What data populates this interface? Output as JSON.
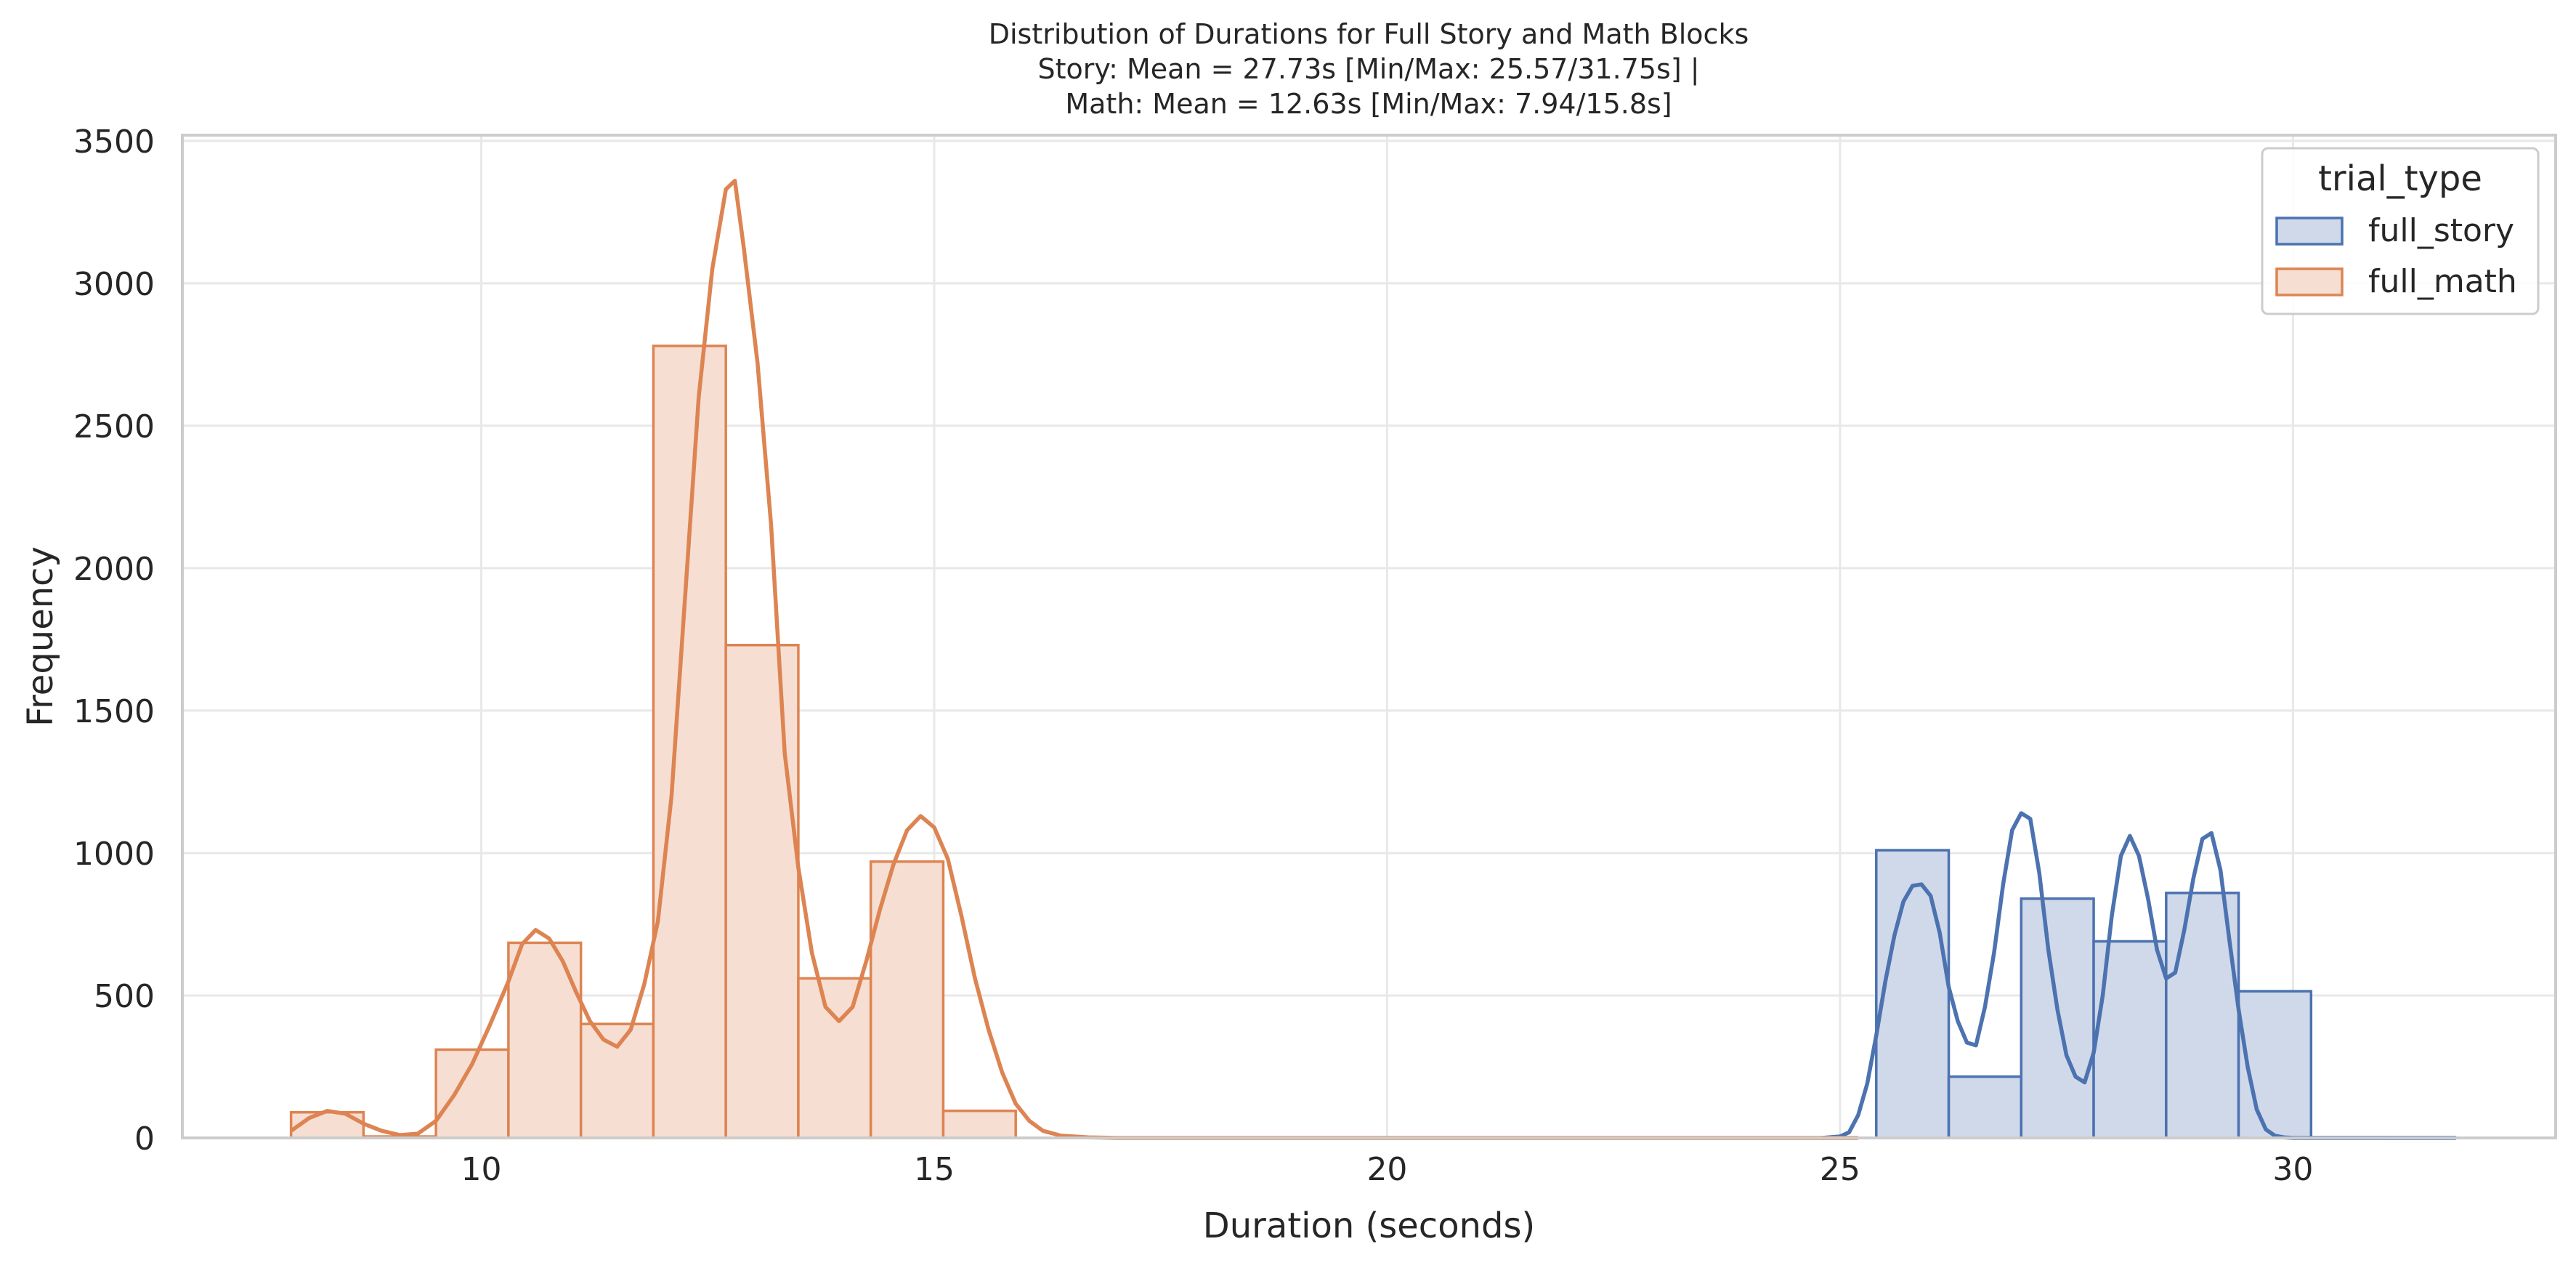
{
  "chart_data": {
    "type": "histogram",
    "title_lines": [
      "Distribution of Durations for Full Story and Math Blocks",
      "Story: Mean = 27.73s [Min/Max: 25.57/31.75s] |",
      "Math: Mean = 12.63s [Min/Max: 7.94/15.8s]"
    ],
    "xlabel": "Duration (seconds)",
    "ylabel": "Frequency",
    "xlim": [
      6.7,
      32.9
    ],
    "ylim": [
      0,
      3520
    ],
    "xticks": [
      10,
      15,
      20,
      25,
      30
    ],
    "yticks": [
      0,
      500,
      1000,
      1500,
      2000,
      2500,
      3000,
      3500
    ],
    "grid": true,
    "legend": {
      "title": "trial_type",
      "placement": "top-right"
    },
    "series": [
      {
        "name": "full_story",
        "color": "#4c72b0",
        "fill": "#d0d9ea",
        "bins": [
          {
            "x0": 25.4,
            "x1": 26.2,
            "count": 1010
          },
          {
            "x0": 26.2,
            "x1": 27.0,
            "count": 215
          },
          {
            "x0": 27.0,
            "x1": 27.8,
            "count": 840
          },
          {
            "x0": 27.8,
            "x1": 28.6,
            "count": 690
          },
          {
            "x0": 28.6,
            "x1": 29.4,
            "count": 860
          },
          {
            "x0": 29.4,
            "x1": 30.2,
            "count": 515
          },
          {
            "x0": 30.2,
            "x1": 31.0,
            "count": 2
          },
          {
            "x0": 31.0,
            "x1": 31.8,
            "count": 1
          }
        ],
        "kde": [
          [
            24.8,
            0
          ],
          [
            25.0,
            5
          ],
          [
            25.1,
            20
          ],
          [
            25.2,
            80
          ],
          [
            25.3,
            190
          ],
          [
            25.4,
            360
          ],
          [
            25.5,
            550
          ],
          [
            25.6,
            710
          ],
          [
            25.7,
            830
          ],
          [
            25.8,
            885
          ],
          [
            25.9,
            890
          ],
          [
            26.0,
            850
          ],
          [
            26.1,
            720
          ],
          [
            26.2,
            530
          ],
          [
            26.3,
            410
          ],
          [
            26.4,
            335
          ],
          [
            26.5,
            325
          ],
          [
            26.6,
            460
          ],
          [
            26.7,
            650
          ],
          [
            26.8,
            890
          ],
          [
            26.9,
            1080
          ],
          [
            27.0,
            1140
          ],
          [
            27.1,
            1120
          ],
          [
            27.2,
            930
          ],
          [
            27.3,
            660
          ],
          [
            27.4,
            450
          ],
          [
            27.5,
            290
          ],
          [
            27.6,
            215
          ],
          [
            27.7,
            195
          ],
          [
            27.8,
            300
          ],
          [
            27.9,
            500
          ],
          [
            28.0,
            780
          ],
          [
            28.1,
            990
          ],
          [
            28.2,
            1060
          ],
          [
            28.3,
            990
          ],
          [
            28.4,
            840
          ],
          [
            28.5,
            660
          ],
          [
            28.6,
            560
          ],
          [
            28.7,
            580
          ],
          [
            28.8,
            730
          ],
          [
            28.9,
            910
          ],
          [
            29.0,
            1050
          ],
          [
            29.1,
            1070
          ],
          [
            29.2,
            940
          ],
          [
            29.3,
            690
          ],
          [
            29.4,
            450
          ],
          [
            29.5,
            250
          ],
          [
            29.6,
            100
          ],
          [
            29.7,
            30
          ],
          [
            29.8,
            8
          ],
          [
            29.9,
            2
          ],
          [
            30.0,
            0
          ],
          [
            30.5,
            0
          ],
          [
            31.0,
            0
          ],
          [
            31.8,
            0
          ]
        ]
      },
      {
        "name": "full_math",
        "color": "#dd8452",
        "fill": "#f6dfd2",
        "bins": [
          {
            "x0": 7.9,
            "x1": 8.7,
            "count": 90
          },
          {
            "x0": 8.7,
            "x1": 9.5,
            "count": 5
          },
          {
            "x0": 9.5,
            "x1": 10.3,
            "count": 310
          },
          {
            "x0": 10.3,
            "x1": 11.1,
            "count": 685
          },
          {
            "x0": 11.1,
            "x1": 11.9,
            "count": 400
          },
          {
            "x0": 11.9,
            "x1": 12.7,
            "count": 2780
          },
          {
            "x0": 12.7,
            "x1": 13.5,
            "count": 1730
          },
          {
            "x0": 13.5,
            "x1": 14.3,
            "count": 560
          },
          {
            "x0": 14.3,
            "x1": 15.1,
            "count": 970
          },
          {
            "x0": 15.1,
            "x1": 15.9,
            "count": 95
          }
        ],
        "kde": [
          [
            7.9,
            25
          ],
          [
            8.1,
            70
          ],
          [
            8.3,
            95
          ],
          [
            8.5,
            85
          ],
          [
            8.7,
            50
          ],
          [
            8.9,
            25
          ],
          [
            9.1,
            10
          ],
          [
            9.3,
            15
          ],
          [
            9.5,
            60
          ],
          [
            9.7,
            150
          ],
          [
            9.9,
            260
          ],
          [
            10.1,
            400
          ],
          [
            10.3,
            550
          ],
          [
            10.45,
            680
          ],
          [
            10.6,
            730
          ],
          [
            10.75,
            700
          ],
          [
            10.9,
            620
          ],
          [
            11.05,
            510
          ],
          [
            11.2,
            410
          ],
          [
            11.35,
            345
          ],
          [
            11.5,
            320
          ],
          [
            11.65,
            380
          ],
          [
            11.8,
            540
          ],
          [
            11.95,
            760
          ],
          [
            12.1,
            1200
          ],
          [
            12.25,
            1900
          ],
          [
            12.4,
            2600
          ],
          [
            12.55,
            3050
          ],
          [
            12.7,
            3330
          ],
          [
            12.8,
            3360
          ],
          [
            12.9,
            3120
          ],
          [
            13.05,
            2720
          ],
          [
            13.2,
            2150
          ],
          [
            13.35,
            1350
          ],
          [
            13.5,
            950
          ],
          [
            13.65,
            650
          ],
          [
            13.8,
            460
          ],
          [
            13.95,
            410
          ],
          [
            14.1,
            460
          ],
          [
            14.25,
            620
          ],
          [
            14.4,
            800
          ],
          [
            14.55,
            960
          ],
          [
            14.7,
            1080
          ],
          [
            14.85,
            1130
          ],
          [
            15.0,
            1090
          ],
          [
            15.15,
            980
          ],
          [
            15.3,
            780
          ],
          [
            15.45,
            560
          ],
          [
            15.6,
            380
          ],
          [
            15.75,
            230
          ],
          [
            15.9,
            120
          ],
          [
            16.05,
            60
          ],
          [
            16.2,
            25
          ],
          [
            16.4,
            8
          ],
          [
            16.7,
            2
          ],
          [
            17.0,
            0
          ],
          [
            20.0,
            0
          ],
          [
            24.0,
            0
          ],
          [
            25.2,
            0
          ]
        ]
      }
    ]
  }
}
